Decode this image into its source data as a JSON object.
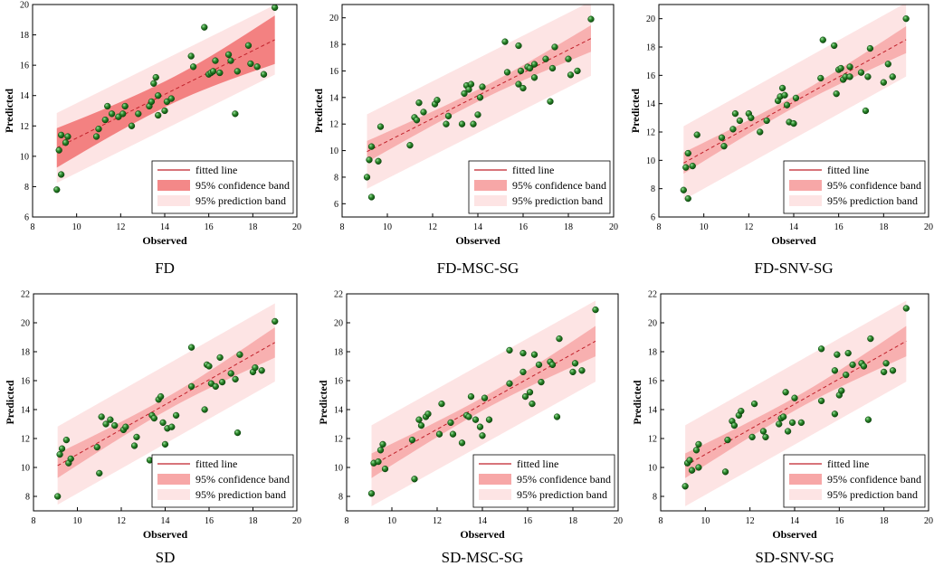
{
  "colors": {
    "prediction_band": "#fde4e4",
    "confidence_band_light": "#f7a7a7",
    "confidence_band_dark": "#ef6060",
    "fitted_line": "#c0202a",
    "point_fill": "#2f8a2f",
    "point_edge": "#0a3f0a",
    "axis": "#000000"
  },
  "chart_data": [
    {
      "type": "scatter",
      "title": "FD",
      "xlabel": "Observed",
      "ylabel": "Predicted",
      "xlim": [
        8,
        20
      ],
      "ylim": [
        6,
        20
      ],
      "xticks": [
        "8",
        "10",
        "12",
        "14",
        "16",
        "18",
        "20"
      ],
      "yticks": [
        "6",
        "8",
        "10",
        "12",
        "14",
        "16",
        "18",
        "20"
      ],
      "fit": {
        "slope": 0.72,
        "intercept": 4.0,
        "x_range": [
          9.1,
          19.0
        ],
        "ci_halfwidth": [
          1.3,
          0.85,
          1.6
        ],
        "pi_halfwidth": 2.3
      },
      "legend": [
        "fitted line",
        "95% confidence band",
        "95% prediction band"
      ],
      "points": [
        [
          9.1,
          7.8
        ],
        [
          9.2,
          10.4
        ],
        [
          9.3,
          8.8
        ],
        [
          9.3,
          11.4
        ],
        [
          9.5,
          10.9
        ],
        [
          9.6,
          11.3
        ],
        [
          10.9,
          11.3
        ],
        [
          11.0,
          11.8
        ],
        [
          11.3,
          12.4
        ],
        [
          11.4,
          13.3
        ],
        [
          11.6,
          12.8
        ],
        [
          11.9,
          12.6
        ],
        [
          12.1,
          12.8
        ],
        [
          12.2,
          13.3
        ],
        [
          12.5,
          12.0
        ],
        [
          12.8,
          12.8
        ],
        [
          13.3,
          13.3
        ],
        [
          13.4,
          13.6
        ],
        [
          13.5,
          14.8
        ],
        [
          13.6,
          15.2
        ],
        [
          13.7,
          14.0
        ],
        [
          13.7,
          12.7
        ],
        [
          14.0,
          13.0
        ],
        [
          14.1,
          13.6
        ],
        [
          14.3,
          13.8
        ],
        [
          15.3,
          15.9
        ],
        [
          15.2,
          16.6
        ],
        [
          15.8,
          18.5
        ],
        [
          16.0,
          15.4
        ],
        [
          16.1,
          15.5
        ],
        [
          16.2,
          15.6
        ],
        [
          16.3,
          16.3
        ],
        [
          16.5,
          15.5
        ],
        [
          16.9,
          16.7
        ],
        [
          17.0,
          16.3
        ],
        [
          17.3,
          15.6
        ],
        [
          17.2,
          12.8
        ],
        [
          17.8,
          17.3
        ],
        [
          17.9,
          16.1
        ],
        [
          18.2,
          15.9
        ],
        [
          18.5,
          15.4
        ],
        [
          19.0,
          19.8
        ]
      ]
    },
    {
      "type": "scatter",
      "title": "FD-MSC-SG",
      "xlabel": "Observed",
      "ylabel": "Predicted",
      "xlim": [
        8,
        20
      ],
      "ylim": [
        5,
        21
      ],
      "xticks": [
        "8",
        "10",
        "12",
        "14",
        "16",
        "18",
        "20"
      ],
      "yticks": [
        "6",
        "8",
        "10",
        "12",
        "14",
        "16",
        "18",
        "20"
      ],
      "fit": {
        "slope": 0.86,
        "intercept": 2.1,
        "x_range": [
          9.1,
          19.0
        ],
        "ci_halfwidth": [
          0.8,
          0.45,
          1.0
        ],
        "pi_halfwidth": 2.8
      },
      "legend": [
        "fitted line",
        "95% confidence band",
        "95% prediction band"
      ],
      "points": [
        [
          9.1,
          8.0
        ],
        [
          9.2,
          9.3
        ],
        [
          9.3,
          10.3
        ],
        [
          9.3,
          6.5
        ],
        [
          9.6,
          9.2
        ],
        [
          9.7,
          11.8
        ],
        [
          11.0,
          10.4
        ],
        [
          11.2,
          12.5
        ],
        [
          11.3,
          12.3
        ],
        [
          11.4,
          13.6
        ],
        [
          11.6,
          12.9
        ],
        [
          12.1,
          13.5
        ],
        [
          12.2,
          13.8
        ],
        [
          12.6,
          12.0
        ],
        [
          12.7,
          12.6
        ],
        [
          13.3,
          12.0
        ],
        [
          13.4,
          14.3
        ],
        [
          13.5,
          14.9
        ],
        [
          13.6,
          14.6
        ],
        [
          13.7,
          15.0
        ],
        [
          13.8,
          12.0
        ],
        [
          14.0,
          12.7
        ],
        [
          14.1,
          14.0
        ],
        [
          14.2,
          14.8
        ],
        [
          15.2,
          18.2
        ],
        [
          15.3,
          15.9
        ],
        [
          15.8,
          17.9
        ],
        [
          15.8,
          15.0
        ],
        [
          15.9,
          16.0
        ],
        [
          16.0,
          14.7
        ],
        [
          16.2,
          16.3
        ],
        [
          16.3,
          16.2
        ],
        [
          16.5,
          15.5
        ],
        [
          16.5,
          16.5
        ],
        [
          17.0,
          16.9
        ],
        [
          17.2,
          13.7
        ],
        [
          17.3,
          16.2
        ],
        [
          17.4,
          17.8
        ],
        [
          18.0,
          16.9
        ],
        [
          18.1,
          15.7
        ],
        [
          18.4,
          16.0
        ],
        [
          19.0,
          19.9
        ]
      ]
    },
    {
      "type": "scatter",
      "title": "FD-SNV-SG",
      "xlabel": "Observed",
      "ylabel": "Predicted",
      "xlim": [
        8,
        20
      ],
      "ylim": [
        6,
        21
      ],
      "xticks": [
        "8",
        "10",
        "12",
        "14",
        "16",
        "18",
        "20"
      ],
      "yticks": [
        "6",
        "8",
        "10",
        "12",
        "14",
        "16",
        "18",
        "20"
      ],
      "fit": {
        "slope": 0.88,
        "intercept": 1.8,
        "x_range": [
          9.1,
          19.0
        ],
        "ci_halfwidth": [
          0.75,
          0.4,
          0.95
        ],
        "pi_halfwidth": 2.6
      },
      "legend": [
        "fitted line",
        "95% confidence band",
        "95% prediction band"
      ],
      "points": [
        [
          9.1,
          7.9
        ],
        [
          9.2,
          9.5
        ],
        [
          9.3,
          10.5
        ],
        [
          9.3,
          7.3
        ],
        [
          9.5,
          9.6
        ],
        [
          9.7,
          11.8
        ],
        [
          10.8,
          11.6
        ],
        [
          10.9,
          11.0
        ],
        [
          11.3,
          12.2
        ],
        [
          11.4,
          13.3
        ],
        [
          11.6,
          12.8
        ],
        [
          12.0,
          13.3
        ],
        [
          12.1,
          13.0
        ],
        [
          12.5,
          12.0
        ],
        [
          12.8,
          12.8
        ],
        [
          13.3,
          14.2
        ],
        [
          13.4,
          14.5
        ],
        [
          13.5,
          15.1
        ],
        [
          13.6,
          14.6
        ],
        [
          13.7,
          13.9
        ],
        [
          13.8,
          12.7
        ],
        [
          14.0,
          12.6
        ],
        [
          14.1,
          14.4
        ],
        [
          15.2,
          15.8
        ],
        [
          15.3,
          18.5
        ],
        [
          15.8,
          18.1
        ],
        [
          15.9,
          14.7
        ],
        [
          16.0,
          16.4
        ],
        [
          16.1,
          16.5
        ],
        [
          16.2,
          15.7
        ],
        [
          16.3,
          15.9
        ],
        [
          16.5,
          16.6
        ],
        [
          16.5,
          15.9
        ],
        [
          17.0,
          16.2
        ],
        [
          17.2,
          13.5
        ],
        [
          17.3,
          15.9
        ],
        [
          17.4,
          17.9
        ],
        [
          18.0,
          15.5
        ],
        [
          18.2,
          16.8
        ],
        [
          18.4,
          15.9
        ],
        [
          19.0,
          20.0
        ]
      ]
    },
    {
      "type": "scatter",
      "title": "SD",
      "xlabel": "Observed",
      "ylabel": "Predicted",
      "xlim": [
        8,
        20
      ],
      "ylim": [
        7,
        22
      ],
      "xticks": [
        "8",
        "10",
        "12",
        "14",
        "16",
        "18",
        "20"
      ],
      "yticks": [
        "8",
        "10",
        "12",
        "14",
        "16",
        "18",
        "20",
        "22"
      ],
      "fit": {
        "slope": 0.86,
        "intercept": 2.3,
        "x_range": [
          9.1,
          19.0
        ],
        "ci_halfwidth": [
          0.85,
          0.45,
          1.05
        ],
        "pi_halfwidth": 2.7
      },
      "legend": [
        "fitted line",
        "95% confidence band",
        "95% prediction band"
      ],
      "points": [
        [
          9.1,
          8.0
        ],
        [
          9.2,
          10.9
        ],
        [
          9.3,
          11.3
        ],
        [
          9.5,
          11.9
        ],
        [
          9.6,
          10.3
        ],
        [
          9.7,
          10.6
        ],
        [
          10.9,
          11.4
        ],
        [
          11.0,
          9.6
        ],
        [
          11.1,
          13.5
        ],
        [
          11.3,
          13.0
        ],
        [
          11.5,
          13.3
        ],
        [
          11.7,
          12.9
        ],
        [
          12.1,
          12.6
        ],
        [
          12.2,
          12.8
        ],
        [
          12.6,
          11.5
        ],
        [
          12.7,
          12.1
        ],
        [
          13.3,
          10.5
        ],
        [
          13.4,
          13.6
        ],
        [
          13.5,
          13.4
        ],
        [
          13.7,
          14.7
        ],
        [
          13.8,
          14.9
        ],
        [
          13.9,
          13.1
        ],
        [
          14.0,
          11.6
        ],
        [
          14.1,
          12.7
        ],
        [
          14.3,
          12.8
        ],
        [
          14.5,
          13.6
        ],
        [
          15.2,
          15.6
        ],
        [
          15.2,
          18.3
        ],
        [
          15.8,
          14.0
        ],
        [
          15.9,
          17.1
        ],
        [
          16.0,
          17.0
        ],
        [
          16.1,
          15.8
        ],
        [
          16.3,
          15.6
        ],
        [
          16.5,
          17.6
        ],
        [
          16.6,
          15.9
        ],
        [
          17.0,
          16.5
        ],
        [
          17.2,
          16.1
        ],
        [
          17.3,
          12.4
        ],
        [
          17.4,
          17.8
        ],
        [
          18.0,
          16.6
        ],
        [
          18.1,
          16.9
        ],
        [
          18.4,
          16.7
        ],
        [
          19.0,
          20.1
        ]
      ]
    },
    {
      "type": "scatter",
      "title": "SD-MSC-SG",
      "xlabel": "Observed",
      "ylabel": "Predicted",
      "xlim": [
        8,
        20
      ],
      "ylim": [
        7,
        22
      ],
      "xticks": [
        "8",
        "10",
        "12",
        "14",
        "16",
        "18",
        "20"
      ],
      "yticks": [
        "8",
        "10",
        "12",
        "14",
        "16",
        "18",
        "20",
        "22"
      ],
      "fit": {
        "slope": 0.87,
        "intercept": 2.2,
        "x_range": [
          9.1,
          19.0
        ],
        "ci_halfwidth": [
          0.85,
          0.45,
          1.05
        ],
        "pi_halfwidth": 2.8
      },
      "legend": [
        "fitted line",
        "95% confidence band",
        "95% prediction band"
      ],
      "points": [
        [
          9.1,
          8.2
        ],
        [
          9.2,
          10.3
        ],
        [
          9.4,
          10.4
        ],
        [
          9.5,
          11.2
        ],
        [
          9.6,
          11.6
        ],
        [
          9.7,
          9.9
        ],
        [
          11.0,
          9.2
        ],
        [
          10.9,
          11.9
        ],
        [
          11.2,
          13.3
        ],
        [
          11.3,
          12.9
        ],
        [
          11.5,
          13.5
        ],
        [
          11.6,
          13.7
        ],
        [
          12.1,
          12.3
        ],
        [
          12.2,
          14.4
        ],
        [
          12.6,
          13.1
        ],
        [
          12.7,
          12.3
        ],
        [
          13.1,
          11.7
        ],
        [
          13.3,
          13.6
        ],
        [
          13.4,
          13.5
        ],
        [
          13.5,
          14.9
        ],
        [
          13.7,
          13.3
        ],
        [
          13.9,
          12.8
        ],
        [
          14.0,
          12.2
        ],
        [
          14.1,
          14.8
        ],
        [
          14.3,
          13.3
        ],
        [
          15.2,
          18.1
        ],
        [
          15.2,
          15.8
        ],
        [
          15.8,
          16.6
        ],
        [
          15.8,
          17.9
        ],
        [
          15.9,
          14.9
        ],
        [
          16.1,
          15.2
        ],
        [
          16.2,
          14.4
        ],
        [
          16.3,
          17.8
        ],
        [
          16.5,
          17.1
        ],
        [
          16.6,
          15.9
        ],
        [
          17.0,
          17.3
        ],
        [
          17.1,
          17.1
        ],
        [
          17.3,
          13.5
        ],
        [
          17.4,
          18.9
        ],
        [
          18.0,
          16.6
        ],
        [
          18.1,
          17.2
        ],
        [
          18.4,
          16.7
        ],
        [
          19.0,
          20.9
        ]
      ]
    },
    {
      "type": "scatter",
      "title": "SD-SNV-SG",
      "xlabel": "Observed",
      "ylabel": "Predicted",
      "xlim": [
        8,
        20
      ],
      "ylim": [
        7,
        22
      ],
      "xticks": [
        "8",
        "10",
        "12",
        "14",
        "16",
        "18",
        "20"
      ],
      "yticks": [
        "8",
        "10",
        "12",
        "14",
        "16",
        "18",
        "20",
        "22"
      ],
      "fit": {
        "slope": 0.87,
        "intercept": 2.2,
        "x_range": [
          9.1,
          19.0
        ],
        "ci_halfwidth": [
          0.85,
          0.45,
          1.05
        ],
        "pi_halfwidth": 2.8
      },
      "legend": [
        "fitted line",
        "95% confidence band",
        "95% prediction band"
      ],
      "points": [
        [
          9.1,
          8.7
        ],
        [
          9.2,
          10.3
        ],
        [
          9.3,
          10.5
        ],
        [
          9.4,
          9.8
        ],
        [
          9.6,
          11.2
        ],
        [
          9.7,
          11.6
        ],
        [
          9.7,
          10.0
        ],
        [
          11.0,
          11.9
        ],
        [
          10.9,
          9.7
        ],
        [
          11.2,
          13.2
        ],
        [
          11.3,
          12.9
        ],
        [
          11.5,
          13.6
        ],
        [
          11.6,
          13.9
        ],
        [
          12.1,
          12.1
        ],
        [
          12.2,
          14.4
        ],
        [
          12.6,
          12.5
        ],
        [
          12.7,
          12.1
        ],
        [
          13.3,
          13.0
        ],
        [
          13.4,
          13.4
        ],
        [
          13.5,
          13.5
        ],
        [
          13.6,
          15.2
        ],
        [
          13.7,
          12.5
        ],
        [
          13.9,
          13.1
        ],
        [
          14.0,
          14.8
        ],
        [
          14.3,
          13.1
        ],
        [
          15.2,
          18.2
        ],
        [
          15.2,
          14.6
        ],
        [
          15.8,
          13.7
        ],
        [
          15.8,
          16.7
        ],
        [
          15.9,
          17.8
        ],
        [
          16.0,
          15.0
        ],
        [
          16.1,
          15.3
        ],
        [
          16.3,
          16.4
        ],
        [
          16.4,
          17.9
        ],
        [
          16.6,
          17.1
        ],
        [
          17.0,
          17.2
        ],
        [
          17.1,
          17.0
        ],
        [
          17.3,
          13.3
        ],
        [
          17.4,
          18.9
        ],
        [
          18.0,
          16.6
        ],
        [
          18.1,
          17.2
        ],
        [
          18.4,
          16.7
        ],
        [
          19.0,
          21.0
        ]
      ]
    }
  ]
}
